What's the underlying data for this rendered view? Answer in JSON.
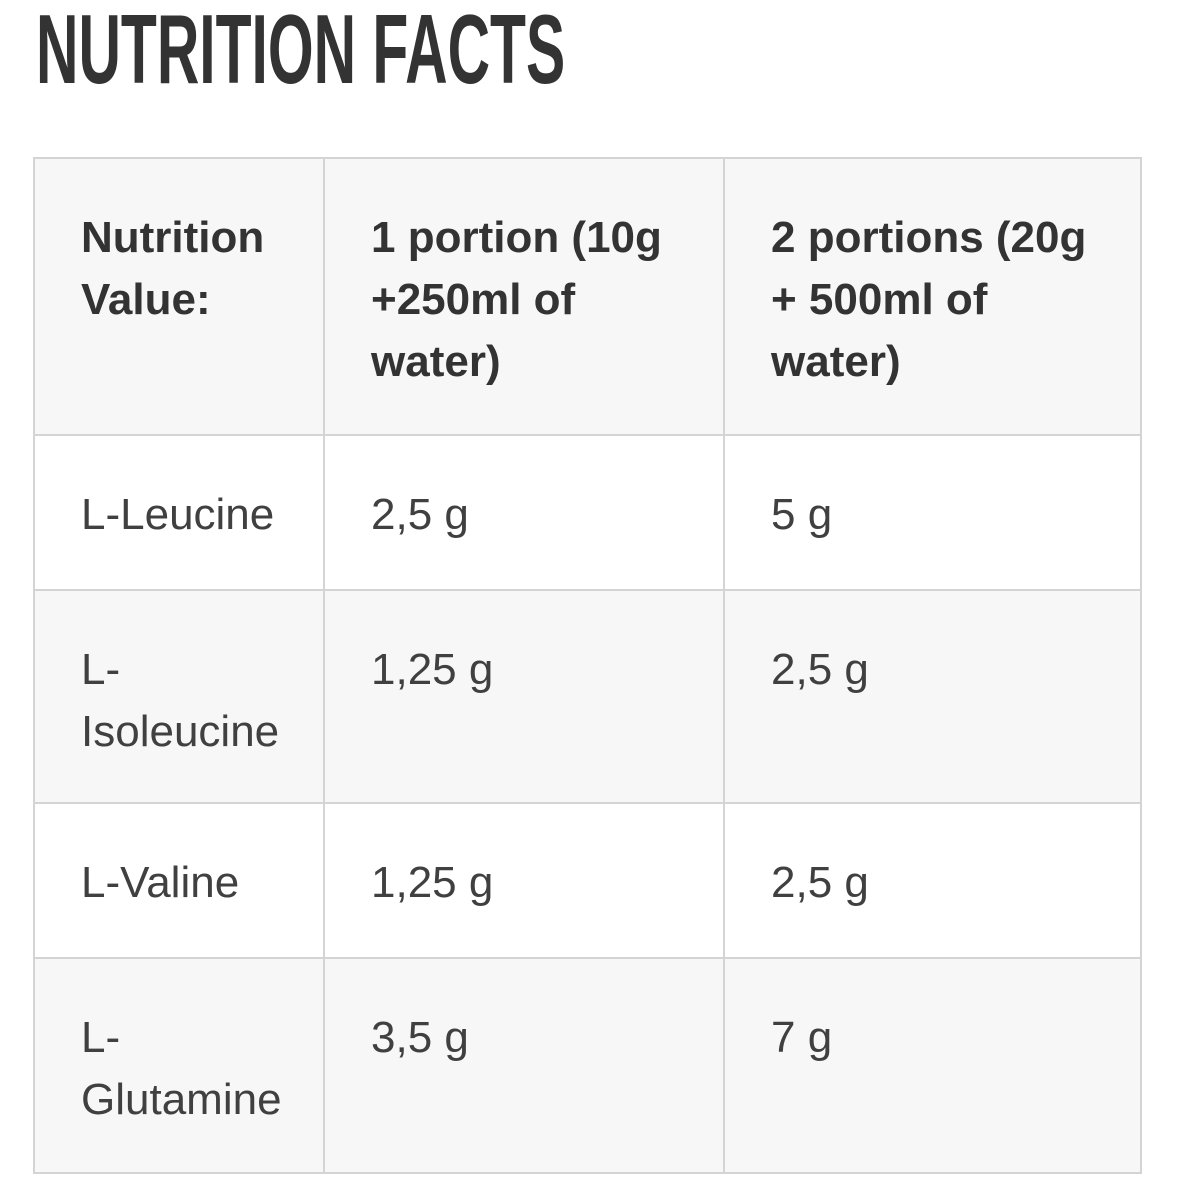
{
  "page": {
    "title": "NUTRITION FACTS"
  },
  "colors": {
    "title": "#333333",
    "text": "#404040",
    "border": "#d4d4d4",
    "header_bg": "#f7f7f7",
    "row_bg": "#ffffff",
    "row_alt_bg": "#f7f7f7",
    "page_bg": "#ffffff"
  },
  "table": {
    "columns": [
      {
        "label": "Nutrition\nValue:"
      },
      {
        "label": "1 portion (10g\n+250ml of\nwater)"
      },
      {
        "label": "2 portions (20g\n+ 500ml of\nwater)"
      }
    ],
    "rows": [
      {
        "name": "L-Leucine",
        "portion1": "2,5 g",
        "portion2": "5 g"
      },
      {
        "name": "L-\nIsoleucine",
        "portion1": "1,25 g",
        "portion2": "2,5 g"
      },
      {
        "name": "L-Valine",
        "portion1": "1,25 g",
        "portion2": "2,5 g"
      },
      {
        "name": "L-\nGlutamine",
        "portion1": "3,5 g",
        "portion2": "7 g"
      }
    ]
  }
}
